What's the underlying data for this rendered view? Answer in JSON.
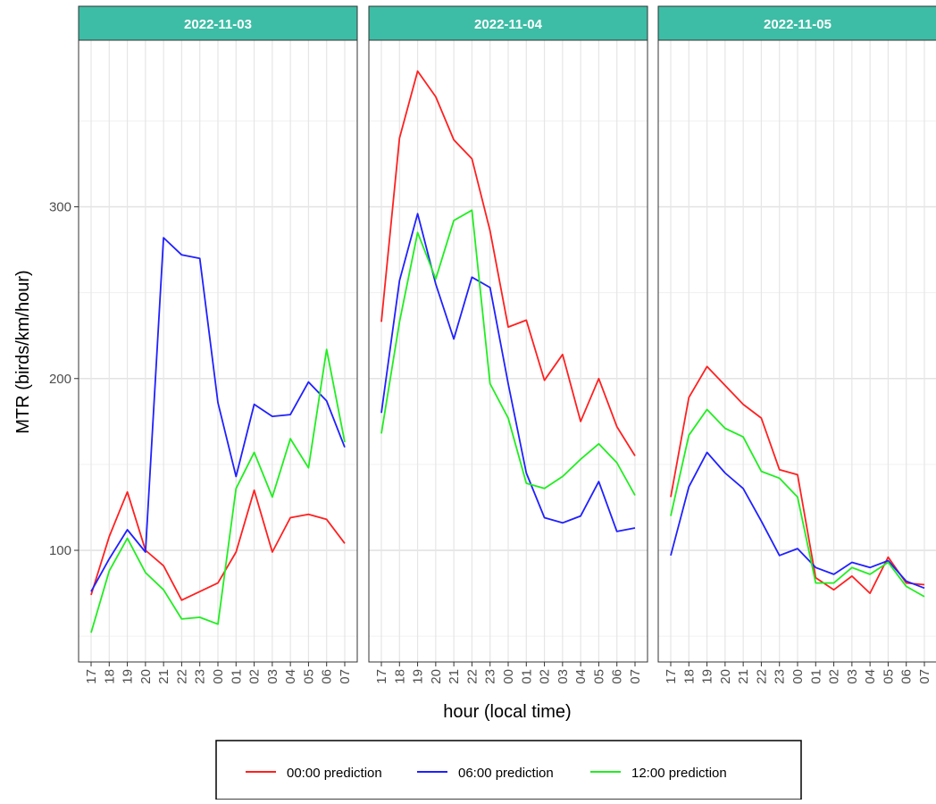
{
  "chart_data": {
    "type": "line",
    "xlabel": "hour (local time)",
    "ylabel": "MTR (birds/km/hour)",
    "y_ticks": [
      100,
      200,
      300
    ],
    "ylim": [
      35,
      397
    ],
    "x_categories": [
      "17",
      "18",
      "19",
      "20",
      "21",
      "22",
      "23",
      "00",
      "01",
      "02",
      "03",
      "04",
      "05",
      "06",
      "07"
    ],
    "legend_position": "bottom",
    "colors": {
      "00:00 prediction": "#ff2020",
      "06:00 prediction": "#2020ff",
      "12:00 prediction": "#20ee20",
      "strip": "#3dbda5"
    },
    "panels": [
      {
        "title": "2022-11-03",
        "series": [
          {
            "name": "00:00 prediction",
            "values": [
              74,
              108,
              134,
              100,
              91,
              71,
              76,
              81,
              99,
              135,
              99,
              119,
              121,
              118,
              104
            ]
          },
          {
            "name": "06:00 prediction",
            "values": [
              76,
              95,
              112,
              99,
              282,
              272,
              270,
              186,
              143,
              185,
              178,
              179,
              198,
              187,
              160
            ]
          },
          {
            "name": "12:00 prediction",
            "values": [
              52,
              88,
              107,
              87,
              77,
              60,
              61,
              57,
              136,
              157,
              131,
              165,
              148,
              217,
              163
            ]
          }
        ]
      },
      {
        "title": "2022-11-04",
        "series": [
          {
            "name": "00:00 prediction",
            "values": [
              233,
              340,
              379,
              364,
              339,
              328,
              286,
              230,
              234,
              199,
              214,
              175,
              200,
              172,
              155
            ]
          },
          {
            "name": "06:00 prediction",
            "values": [
              180,
              257,
              296,
              255,
              223,
              259,
              253,
              197,
              145,
              119,
              116,
              120,
              140,
              111,
              113
            ]
          },
          {
            "name": "12:00 prediction",
            "values": [
              168,
              233,
              285,
              258,
              292,
              298,
              197,
              177,
              139,
              136,
              143,
              153,
              162,
              151,
              132
            ]
          }
        ]
      },
      {
        "title": "2022-11-05",
        "series": [
          {
            "name": "00:00 prediction",
            "values": [
              131,
              189,
              207,
              196,
              185,
              177,
              147,
              144,
              84,
              77,
              85,
              75,
              96,
              81,
              80
            ]
          },
          {
            "name": "06:00 prediction",
            "values": [
              97,
              137,
              157,
              145,
              136,
              117,
              97,
              101,
              90,
              86,
              93,
              90,
              94,
              82,
              78
            ]
          },
          {
            "name": "12:00 prediction",
            "values": [
              120,
              167,
              182,
              171,
              166,
              146,
              142,
              131,
              81,
              81,
              90,
              86,
              93,
              79,
              73
            ]
          }
        ]
      }
    ]
  },
  "legend": {
    "items": [
      {
        "label": "00:00 prediction",
        "color": "#ff2020"
      },
      {
        "label": "06:00 prediction",
        "color": "#2020ff"
      },
      {
        "label": "12:00 prediction",
        "color": "#20ee20"
      }
    ]
  }
}
